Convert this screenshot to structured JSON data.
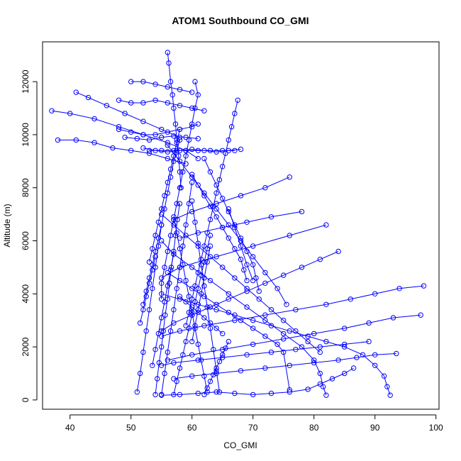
{
  "chart_data": {
    "type": "scatter",
    "title": "ATOM1 Southbound CO_GMI",
    "xlabel": "CO_GMI",
    "ylabel": "Altitude (m)",
    "xlim": [
      35.5,
      100.5
    ],
    "ylim": [
      -350,
      13500
    ],
    "xticks": [
      40,
      50,
      60,
      70,
      80,
      90,
      100
    ],
    "yticks": [
      0,
      2000,
      4000,
      6000,
      8000,
      10000,
      12000
    ],
    "grid": false,
    "legend": "none",
    "marker": "open-circle",
    "line": "connected",
    "color": "#0000ff",
    "series": [
      {
        "x": [
          56,
          56.2,
          56.5,
          56.8,
          57,
          57.3,
          57.5,
          57.8,
          58,
          58.2
        ],
        "y": [
          13100,
          12700,
          12000,
          11500,
          11000,
          10400,
          9800,
          9200,
          8600,
          8000
        ]
      },
      {
        "x": [
          41,
          43,
          46,
          49,
          52,
          55,
          58
        ],
        "y": [
          11600,
          11400,
          11100,
          10800,
          10500,
          10200,
          9900
        ]
      },
      {
        "x": [
          37,
          40,
          44,
          48,
          52,
          56,
          59,
          61
        ],
        "y": [
          10900,
          10800,
          10600,
          10300,
          10000,
          9700,
          9400,
          9100
        ]
      },
      {
        "x": [
          38,
          41,
          44,
          47,
          50,
          53,
          56,
          59
        ],
        "y": [
          9800,
          9800,
          9700,
          9500,
          9400,
          9300,
          9100,
          8900
        ]
      },
      {
        "x": [
          60.5,
          61,
          60.5,
          60,
          59.5,
          59,
          58.5,
          58,
          57.5,
          57,
          56.5,
          56,
          55.5,
          55,
          55
        ],
        "y": [
          12000,
          11500,
          11000,
          10400,
          9800,
          9200,
          8600,
          8000,
          7400,
          6800,
          6200,
          5600,
          5000,
          4400,
          3800
        ]
      },
      {
        "x": [
          67.5,
          67,
          66.5,
          66,
          65.5,
          65,
          64.5,
          64,
          63.5,
          63,
          62.5,
          62,
          61.5,
          61,
          60.5,
          60,
          59.5,
          59
        ],
        "y": [
          11300,
          10800,
          10300,
          9800,
          9300,
          8800,
          8300,
          7800,
          7300,
          6800,
          6300,
          5800,
          5300,
          4800,
          4300,
          3800,
          3300,
          2800
        ]
      },
      {
        "x": [
          76,
          72,
          68,
          64,
          60,
          57
        ],
        "y": [
          8400,
          8000,
          7700,
          7400,
          7100,
          6800
        ]
      },
      {
        "x": [
          78,
          73,
          69,
          65,
          61,
          58
        ],
        "y": [
          7100,
          6900,
          6700,
          6500,
          6300,
          6100
        ]
      },
      {
        "x": [
          82,
          76,
          70,
          64,
          58,
          55
        ],
        "y": [
          6600,
          6200,
          5800,
          5400,
          5000,
          4600
        ]
      },
      {
        "x": [
          98,
          94,
          90,
          86,
          82,
          77,
          72,
          67,
          62,
          58,
          55
        ],
        "y": [
          4300,
          4200,
          4000,
          3800,
          3600,
          3400,
          3200,
          3000,
          2800,
          2600,
          2400
        ]
      },
      {
        "x": [
          97.5,
          93,
          89,
          85,
          80,
          75,
          70,
          65,
          60,
          56
        ],
        "y": [
          3200,
          3100,
          2900,
          2700,
          2500,
          2300,
          2100,
          1900,
          1700,
          1500
        ]
      },
      {
        "x": [
          93.5,
          90,
          87,
          84,
          80,
          76,
          72,
          68,
          64,
          60,
          57
        ],
        "y": [
          1750,
          1700,
          1600,
          1500,
          1400,
          1300,
          1200,
          1100,
          1000,
          900,
          800
        ]
      },
      {
        "x": [
          86.5,
          85,
          83,
          81,
          79,
          76,
          73,
          70,
          67,
          64,
          61,
          58,
          55
        ],
        "y": [
          1200,
          1000,
          800,
          600,
          400,
          300,
          250,
          200,
          250,
          300,
          250,
          200,
          180
        ]
      },
      {
        "x": [
          92.5,
          92,
          91.5,
          90,
          88,
          85,
          82,
          79,
          76,
          73,
          70,
          67,
          64,
          61,
          58,
          55
        ],
        "y": [
          180,
          500,
          900,
          1300,
          1700,
          2000,
          2200,
          2400,
          2600,
          2800,
          3000,
          3200,
          3400,
          3600,
          3800,
          4000
        ]
      },
      {
        "x": [
          82,
          81.5,
          81,
          80,
          78,
          75,
          72,
          69,
          66,
          63,
          60,
          57,
          55
        ],
        "y": [
          180,
          500,
          1000,
          1500,
          2000,
          2500,
          3000,
          3500,
          4000,
          4500,
          5000,
          5500,
          6000
        ]
      },
      {
        "x": [
          51,
          51.5,
          52,
          52.5,
          53,
          53.5,
          54,
          54.5,
          55,
          55.5,
          56,
          56.5,
          57,
          57.5,
          58
        ],
        "y": [
          300,
          1000,
          1800,
          2600,
          3400,
          4200,
          5000,
          5800,
          6600,
          7200,
          7800,
          8400,
          9000,
          9400,
          9800
        ]
      },
      {
        "x": [
          54,
          54.3,
          54.6,
          55,
          55.3,
          55.6,
          56,
          56.3,
          56.6,
          57,
          57.3,
          57.6,
          58
        ],
        "y": [
          200,
          800,
          1400,
          2000,
          2600,
          3200,
          3800,
          4400,
          5000,
          5600,
          6200,
          6800,
          7400
        ]
      },
      {
        "x": [
          57,
          57.5,
          58,
          58.5,
          59,
          59.5,
          60,
          60.5,
          61,
          61.5,
          62,
          62.5,
          63
        ],
        "y": [
          200,
          700,
          1200,
          1700,
          2200,
          2700,
          3200,
          3700,
          4200,
          4700,
          5200,
          5700,
          6200
        ]
      },
      {
        "x": [
          62.5,
          62,
          61.5,
          61,
          60.5,
          60,
          59.5,
          59,
          58.5,
          58,
          57.5,
          57
        ],
        "y": [
          300,
          900,
          1500,
          2100,
          2700,
          3300,
          3900,
          4500,
          5100,
          5700,
          6300,
          6900
        ]
      },
      {
        "x": [
          64.5,
          64,
          63.5,
          63,
          62.5,
          62,
          61.5,
          61,
          60.5,
          60
        ],
        "y": [
          300,
          1100,
          1900,
          2700,
          3500,
          4300,
          5100,
          5900,
          6700,
          7500
        ]
      },
      {
        "x": [
          69,
          68.5,
          68,
          67,
          66,
          65,
          64,
          63,
          62,
          61,
          60
        ],
        "y": [
          4500,
          4900,
          5300,
          5700,
          6100,
          6500,
          6900,
          7300,
          7700,
          8100,
          8500
        ]
      },
      {
        "x": [
          71,
          70.5,
          70,
          69,
          68,
          67,
          66,
          65,
          64,
          63,
          62
        ],
        "y": [
          4100,
          4600,
          5100,
          5600,
          6100,
          6600,
          7100,
          7600,
          8100,
          8600,
          9100
        ]
      },
      {
        "x": [
          75.5,
          74,
          72,
          70,
          68,
          66,
          64,
          62,
          60,
          58,
          56
        ],
        "y": [
          3600,
          4200,
          4800,
          5400,
          6000,
          6600,
          7200,
          7800,
          8400,
          9000,
          9600
        ]
      },
      {
        "x": [
          53,
          53.5,
          54,
          54.5,
          55,
          55.5,
          56,
          56.5,
          57,
          57.5,
          58
        ],
        "y": [
          5200,
          5700,
          6200,
          6700,
          7200,
          7700,
          8200,
          8700,
          9200,
          9700,
          10200
        ]
      },
      {
        "x": [
          52,
          52.5,
          53,
          53.5,
          54,
          54.5,
          55
        ],
        "y": [
          3600,
          4100,
          4600,
          5100,
          5600,
          6100,
          6600
        ]
      },
      {
        "x": [
          51.5,
          52,
          52.5,
          53,
          53.5,
          54
        ],
        "y": [
          2900,
          3400,
          3900,
          4400,
          4900,
          5400
        ]
      },
      {
        "x": [
          53,
          55,
          57,
          59,
          61,
          63,
          65,
          67
        ],
        "y": [
          9400,
          9400,
          9400,
          9400,
          9400,
          9400,
          9400,
          9400
        ]
      },
      {
        "x": [
          52,
          54,
          56,
          58,
          60,
          62,
          64,
          66,
          68
        ],
        "y": [
          9500,
          9400,
          9350,
          9400,
          9450,
          9400,
          9350,
          9400,
          9450
        ]
      },
      {
        "x": [
          50,
          52,
          54,
          56,
          58,
          60
        ],
        "y": [
          12000,
          12000,
          11900,
          11800,
          11700,
          11600
        ]
      },
      {
        "x": [
          48,
          50,
          52,
          54,
          56,
          58,
          60,
          62
        ],
        "y": [
          11300,
          11200,
          11200,
          11300,
          11200,
          11100,
          11000,
          10900
        ]
      },
      {
        "x": [
          48,
          50,
          52,
          54,
          56,
          58,
          60,
          61
        ],
        "y": [
          10200,
          10100,
          10000,
          10000,
          10100,
          10200,
          10300,
          10400
        ]
      },
      {
        "x": [
          49,
          51,
          53,
          55,
          57,
          59,
          61
        ],
        "y": [
          9900,
          9850,
          9800,
          9900,
          9950,
          9900,
          9850
        ]
      },
      {
        "x": [
          56,
          58,
          60,
          62,
          64,
          66,
          68,
          70,
          72,
          74,
          75,
          76
        ],
        "y": [
          4800,
          4500,
          4200,
          3900,
          3600,
          3300,
          3000,
          2700,
          2400,
          2100,
          1800,
          380
        ]
      },
      {
        "x": [
          55,
          57,
          59,
          61,
          63,
          65,
          67,
          69,
          71,
          73,
          75,
          77,
          79,
          81
        ],
        "y": [
          7000,
          6600,
          6200,
          5800,
          5400,
          5000,
          4600,
          4200,
          3800,
          3400,
          3000,
          2600,
          2200,
          1800
        ]
      },
      {
        "x": [
          84,
          81,
          78,
          75,
          72,
          69,
          66,
          63,
          60,
          57,
          55
        ],
        "y": [
          5600,
          5300,
          5000,
          4700,
          4400,
          4100,
          3800,
          3500,
          3200,
          2900,
          2600
        ]
      },
      {
        "x": [
          89,
          85,
          81,
          77,
          73,
          69,
          65,
          61,
          57,
          55
        ],
        "y": [
          2200,
          2100,
          2000,
          1900,
          1800,
          1700,
          1600,
          1500,
          1400,
          1300
        ]
      },
      {
        "x": [
          62,
          62.5,
          63,
          63.5,
          64,
          64.5,
          65,
          65.5,
          66
        ],
        "y": [
          200,
          450,
          700,
          950,
          1200,
          1450,
          1700,
          1950,
          2200
        ]
      },
      {
        "x": [
          58,
          59,
          60,
          61,
          62,
          63,
          64,
          65
        ],
        "y": [
          3900,
          3700,
          3500,
          3300,
          3100,
          2900,
          2700,
          2500
        ]
      },
      {
        "x": [
          55,
          55.5,
          56,
          56.5,
          57,
          57.5,
          58,
          58.5,
          59,
          59.5,
          60
        ],
        "y": [
          200,
          1000,
          1800,
          2600,
          3400,
          4200,
          5000,
          5800,
          6600,
          7400,
          8200
        ]
      },
      {
        "x": [
          60,
          60.5,
          61,
          61.5,
          62,
          62.5,
          63
        ],
        "y": [
          2200,
          2800,
          3400,
          4000,
          4600,
          5200,
          5800
        ]
      },
      {
        "x": [
          53.5,
          54,
          54.5,
          55,
          55.5,
          56,
          56.5,
          57
        ],
        "y": [
          1300,
          1900,
          2500,
          3100,
          3700,
          4300,
          4900,
          5500
        ]
      },
      {
        "x": [
          66,
          67,
          68,
          69,
          70
        ],
        "y": [
          7200,
          6500,
          5800,
          5100,
          4500
        ]
      }
    ]
  }
}
